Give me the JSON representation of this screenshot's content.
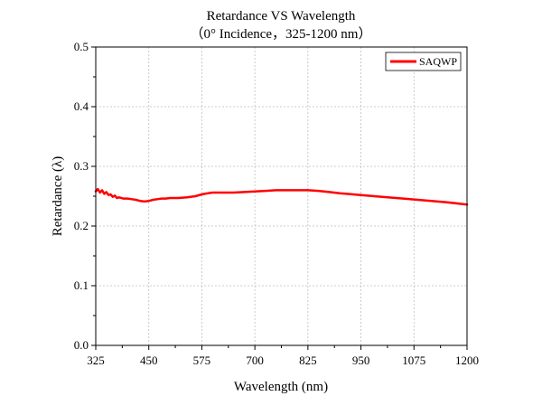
{
  "chart_data": {
    "type": "line",
    "title": "Retardance VS Wavelength",
    "subtitle": "（0° Incidence，325-1200 nm）",
    "xlabel": "Wavelength (nm)",
    "ylabel": "Retardance (λ)",
    "xlim": [
      325,
      1200
    ],
    "ylim": [
      0.0,
      0.5
    ],
    "xticks": [
      "325",
      "450",
      "575",
      "700",
      "825",
      "950",
      "1075",
      "1200"
    ],
    "yticks": [
      "0.0",
      "0.1",
      "0.2",
      "0.3",
      "0.4",
      "0.5"
    ],
    "grid": true,
    "legend_position": "top-right",
    "series": [
      {
        "name": "SAQWP",
        "color": "#ff0000",
        "x": [
          325,
          330,
          335,
          340,
          345,
          350,
          355,
          360,
          365,
          370,
          375,
          380,
          390,
          400,
          410,
          420,
          430,
          440,
          450,
          460,
          470,
          480,
          490,
          500,
          520,
          540,
          560,
          575,
          590,
          600,
          625,
          650,
          675,
          700,
          725,
          750,
          775,
          800,
          825,
          850,
          875,
          900,
          950,
          1000,
          1050,
          1100,
          1150,
          1200
        ],
        "y": [
          0.258,
          0.262,
          0.256,
          0.26,
          0.254,
          0.257,
          0.252,
          0.253,
          0.249,
          0.251,
          0.247,
          0.248,
          0.246,
          0.246,
          0.245,
          0.244,
          0.242,
          0.241,
          0.242,
          0.244,
          0.245,
          0.246,
          0.246,
          0.247,
          0.247,
          0.248,
          0.25,
          0.253,
          0.255,
          0.256,
          0.256,
          0.256,
          0.257,
          0.258,
          0.259,
          0.26,
          0.26,
          0.26,
          0.26,
          0.259,
          0.257,
          0.255,
          0.252,
          0.249,
          0.246,
          0.243,
          0.24,
          0.236
        ]
      }
    ]
  }
}
